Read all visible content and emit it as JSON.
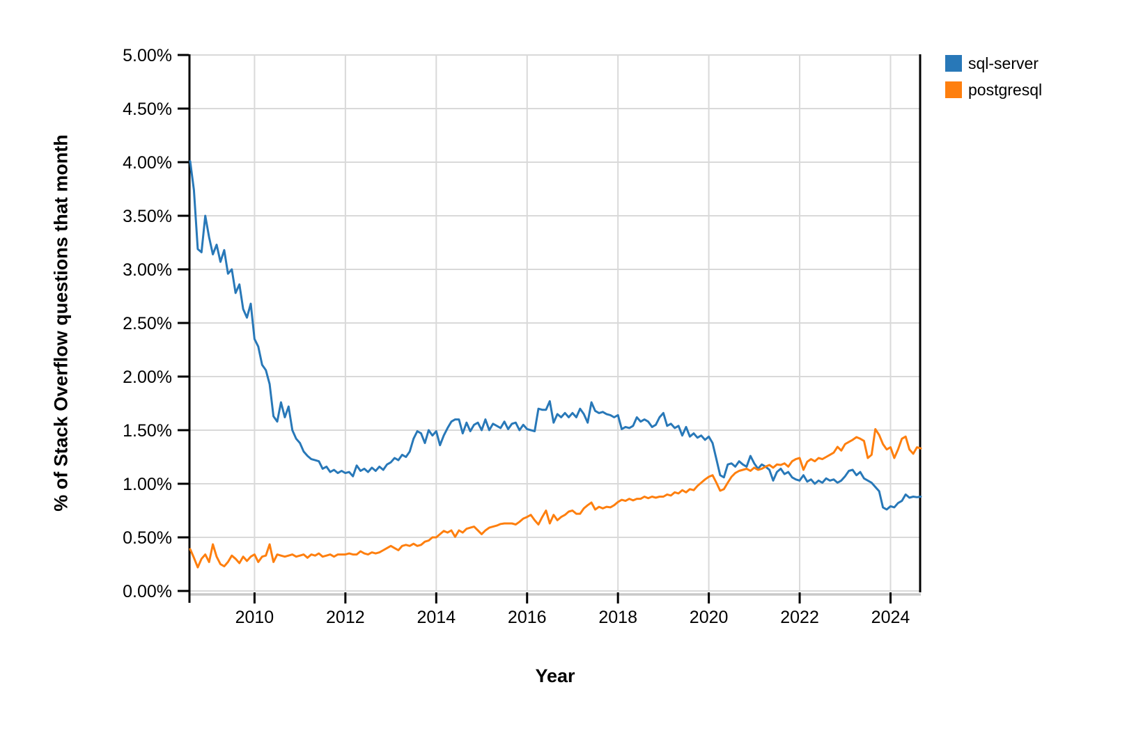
{
  "legend": {
    "items": [
      {
        "label": "sql-server",
        "color": "#2878B8"
      },
      {
        "label": "postgresql",
        "color": "#FE7F0E"
      }
    ]
  },
  "chart_data": {
    "type": "line",
    "title": "",
    "xlabel": "Year",
    "ylabel": "% of Stack Overflow questions that month",
    "x_unit": "decimal_year_monthly",
    "x_start": 2008.583,
    "x_step": 0.083333,
    "xlim": [
      2008.583,
      2024.667
    ],
    "ylim": [
      0,
      5
    ],
    "grid": true,
    "legend_position": "top-right",
    "x_tick_values": [
      2010,
      2012,
      2014,
      2016,
      2018,
      2020,
      2022,
      2024
    ],
    "x_tick_labels": [
      "2010",
      "2012",
      "2014",
      "2016",
      "2018",
      "2020",
      "2022",
      "2024"
    ],
    "y_tick_values": [
      0,
      0.5,
      1,
      1.5,
      2,
      2.5,
      3,
      3.5,
      4,
      4.5,
      5
    ],
    "y_tick_labels": [
      "0.00%",
      "0.50%",
      "1.00%",
      "1.50%",
      "2.00%",
      "2.50%",
      "3.00%",
      "3.50%",
      "4.00%",
      "4.50%",
      "5.00%"
    ],
    "colors": {
      "grid": "#D9D9D9",
      "axis_baseline": "#C8C8C8",
      "spine": "#000000"
    },
    "series": [
      {
        "name": "sql-server",
        "color": "#2878B8",
        "values": [
          4.01,
          3.74,
          3.19,
          3.16,
          3.5,
          3.3,
          3.14,
          3.23,
          3.07,
          3.18,
          2.96,
          3.0,
          2.78,
          2.86,
          2.63,
          2.55,
          2.68,
          2.35,
          2.28,
          2.11,
          2.06,
          1.93,
          1.63,
          1.58,
          1.76,
          1.62,
          1.72,
          1.5,
          1.42,
          1.38,
          1.3,
          1.26,
          1.23,
          1.22,
          1.21,
          1.14,
          1.16,
          1.11,
          1.13,
          1.1,
          1.12,
          1.1,
          1.11,
          1.07,
          1.17,
          1.12,
          1.14,
          1.11,
          1.15,
          1.12,
          1.16,
          1.13,
          1.18,
          1.2,
          1.24,
          1.22,
          1.27,
          1.25,
          1.3,
          1.42,
          1.49,
          1.47,
          1.38,
          1.5,
          1.45,
          1.49,
          1.36,
          1.45,
          1.52,
          1.58,
          1.6,
          1.6,
          1.47,
          1.57,
          1.49,
          1.55,
          1.57,
          1.5,
          1.6,
          1.5,
          1.56,
          1.54,
          1.52,
          1.58,
          1.51,
          1.56,
          1.57,
          1.5,
          1.55,
          1.51,
          1.5,
          1.49,
          1.7,
          1.69,
          1.69,
          1.77,
          1.57,
          1.65,
          1.62,
          1.66,
          1.62,
          1.66,
          1.62,
          1.7,
          1.65,
          1.57,
          1.76,
          1.68,
          1.66,
          1.67,
          1.65,
          1.64,
          1.62,
          1.64,
          1.51,
          1.53,
          1.52,
          1.54,
          1.62,
          1.58,
          1.6,
          1.58,
          1.53,
          1.55,
          1.62,
          1.66,
          1.54,
          1.56,
          1.52,
          1.54,
          1.45,
          1.53,
          1.44,
          1.47,
          1.43,
          1.45,
          1.41,
          1.44,
          1.38,
          1.23,
          1.08,
          1.06,
          1.18,
          1.19,
          1.16,
          1.21,
          1.18,
          1.16,
          1.26,
          1.19,
          1.14,
          1.18,
          1.16,
          1.13,
          1.03,
          1.11,
          1.14,
          1.09,
          1.11,
          1.06,
          1.04,
          1.03,
          1.08,
          1.02,
          1.04,
          1.0,
          1.03,
          1.01,
          1.05,
          1.03,
          1.04,
          1.01,
          1.03,
          1.07,
          1.12,
          1.13,
          1.08,
          1.11,
          1.05,
          1.03,
          1.01,
          0.97,
          0.93,
          0.78,
          0.76,
          0.79,
          0.78,
          0.82,
          0.84,
          0.9,
          0.87,
          0.88,
          0.875,
          0.88
        ]
      },
      {
        "name": "postgresql",
        "color": "#FE7F0E",
        "values": [
          0.39,
          0.31,
          0.22,
          0.3,
          0.34,
          0.27,
          0.435,
          0.32,
          0.25,
          0.23,
          0.27,
          0.33,
          0.3,
          0.26,
          0.32,
          0.28,
          0.32,
          0.34,
          0.27,
          0.32,
          0.33,
          0.435,
          0.27,
          0.34,
          0.33,
          0.32,
          0.33,
          0.34,
          0.32,
          0.33,
          0.34,
          0.31,
          0.34,
          0.33,
          0.35,
          0.32,
          0.33,
          0.34,
          0.32,
          0.34,
          0.34,
          0.34,
          0.35,
          0.34,
          0.34,
          0.37,
          0.35,
          0.34,
          0.36,
          0.35,
          0.36,
          0.38,
          0.4,
          0.42,
          0.4,
          0.38,
          0.42,
          0.43,
          0.42,
          0.44,
          0.42,
          0.43,
          0.46,
          0.47,
          0.5,
          0.5,
          0.53,
          0.56,
          0.545,
          0.565,
          0.505,
          0.565,
          0.545,
          0.58,
          0.59,
          0.6,
          0.565,
          0.53,
          0.565,
          0.59,
          0.6,
          0.61,
          0.625,
          0.63,
          0.63,
          0.63,
          0.62,
          0.645,
          0.675,
          0.69,
          0.71,
          0.66,
          0.62,
          0.69,
          0.75,
          0.63,
          0.71,
          0.66,
          0.69,
          0.71,
          0.74,
          0.75,
          0.72,
          0.72,
          0.77,
          0.8,
          0.825,
          0.76,
          0.785,
          0.77,
          0.785,
          0.78,
          0.8,
          0.83,
          0.85,
          0.84,
          0.86,
          0.845,
          0.86,
          0.86,
          0.88,
          0.865,
          0.88,
          0.87,
          0.88,
          0.88,
          0.9,
          0.89,
          0.92,
          0.91,
          0.94,
          0.92,
          0.95,
          0.94,
          0.98,
          1.01,
          1.04,
          1.065,
          1.08,
          1.01,
          0.935,
          0.95,
          1.01,
          1.065,
          1.1,
          1.12,
          1.13,
          1.14,
          1.12,
          1.15,
          1.13,
          1.14,
          1.16,
          1.175,
          1.15,
          1.18,
          1.175,
          1.19,
          1.16,
          1.21,
          1.23,
          1.24,
          1.13,
          1.205,
          1.23,
          1.21,
          1.24,
          1.23,
          1.25,
          1.27,
          1.29,
          1.345,
          1.31,
          1.37,
          1.39,
          1.41,
          1.435,
          1.42,
          1.4,
          1.24,
          1.27,
          1.51,
          1.455,
          1.37,
          1.32,
          1.34,
          1.24,
          1.32,
          1.42,
          1.44,
          1.32,
          1.28,
          1.34,
          1.33
        ]
      }
    ]
  }
}
